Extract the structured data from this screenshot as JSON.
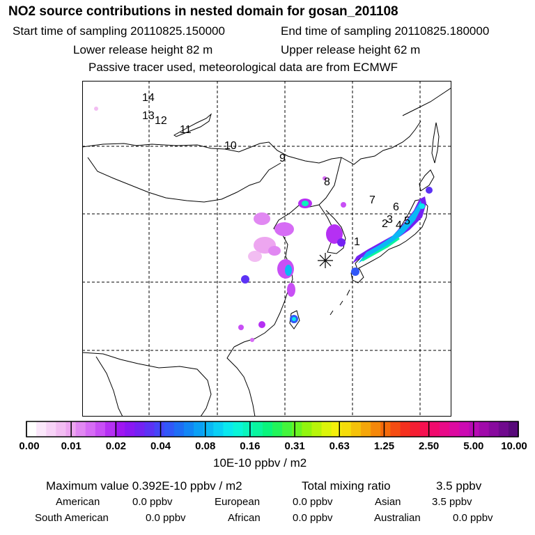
{
  "header": {
    "title": "NO2 source contributions in nested domain for gosan_201108",
    "start_time": "Start time of sampling 20110825.150000",
    "end_time": "End time of sampling 20110825.180000",
    "lower_height": "Lower release height   82 m",
    "upper_height": "Upper release height   62 m",
    "tracer_note": "Passive tracer used, meteorological data are from ECMWF"
  },
  "map": {
    "trajectory_labels": [
      "1",
      "2",
      "3",
      "4",
      "5",
      "6",
      "7",
      "8",
      "9",
      "10",
      "11",
      "12",
      "13",
      "14"
    ],
    "receptor_marker": "gosan-receptor"
  },
  "colorbar": {
    "tick_labels": [
      "0.00",
      "0.01",
      "0.02",
      "0.04",
      "0.08",
      "0.16",
      "0.31",
      "0.63",
      "1.25",
      "2.50",
      "5.00",
      "10.00"
    ],
    "unit_label": "10E-10 ppbv / m2",
    "colors": [
      "#ffffff",
      "#fbe8fb",
      "#f7d3f7",
      "#f2bdf2",
      "#eda6f0",
      "#e188f2",
      "#d66cf5",
      "#c84ff5",
      "#b530f3",
      "#9f16f2",
      "#8a18f3",
      "#7422f3",
      "#5c32f5",
      "#4545f8",
      "#3158f8",
      "#1e6ef5",
      "#1286f5",
      "#0aa0f5",
      "#0ab8f5",
      "#0ad0f5",
      "#0ae8ee",
      "#0af5d8",
      "#0af5bc",
      "#0af59e",
      "#0af57c",
      "#22f55a",
      "#44f53c",
      "#6af522",
      "#92f50e",
      "#b8f50a",
      "#dcf50a",
      "#f5f00a",
      "#f5dc0a",
      "#f5c20a",
      "#f5a60a",
      "#f5880a",
      "#f56a0a",
      "#f54c12",
      "#f5301e",
      "#f51e32",
      "#f51050",
      "#f00a6c",
      "#e80a88",
      "#dc0aa0",
      "#cc0ab2",
      "#b80ab4",
      "#a00aaa",
      "#880a9e",
      "#700a8e",
      "#580a7a"
    ]
  },
  "summary": {
    "maximum": "Maximum value  0.392E-10 ppbv / m2",
    "total_label": "Total mixing ratio",
    "total_value": "3.5 ppbv",
    "american_label": "American",
    "american_value": "0.0 ppbv",
    "european_label": "European",
    "european_value": "0.0 ppbv",
    "asian_label": "Asian",
    "asian_value": "3.5 ppbv",
    "south_american_label": "South American",
    "south_american_value": "0.0 ppbv",
    "african_label": "African",
    "african_value": "0.0 ppbv",
    "australian_label": "Australian",
    "australian_value": "0.0 ppbv"
  }
}
